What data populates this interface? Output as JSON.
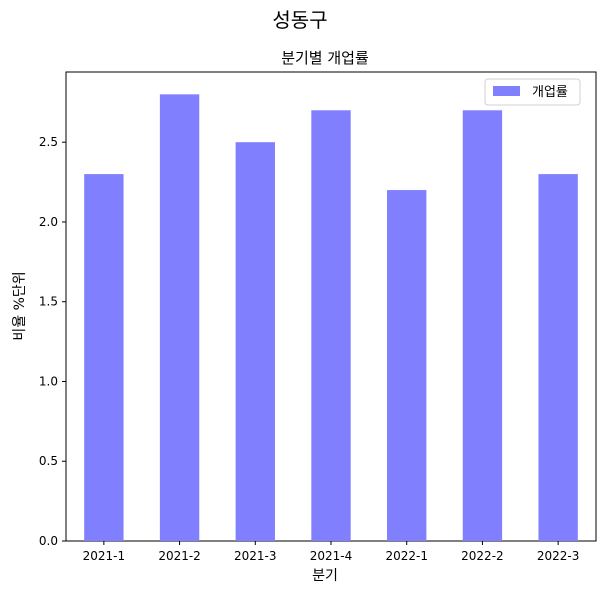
{
  "chart_data": {
    "type": "bar",
    "suptitle": "성동구",
    "title": "분기별 개업률",
    "xlabel": "분기",
    "ylabel": "비율 %단위",
    "categories": [
      "2021-1",
      "2021-2",
      "2021-3",
      "2021-4",
      "2022-1",
      "2022-2",
      "2022-3"
    ],
    "series": [
      {
        "name": "개업률",
        "values": [
          2.3,
          2.8,
          2.5,
          2.7,
          2.2,
          2.7,
          2.3
        ],
        "color": "#8080ff"
      }
    ],
    "ylim": [
      0,
      2.94
    ],
    "yticks": [
      "0.0",
      "0.5",
      "1.0",
      "1.5",
      "2.0",
      "2.5"
    ],
    "grid": false,
    "legend": "top-right"
  }
}
